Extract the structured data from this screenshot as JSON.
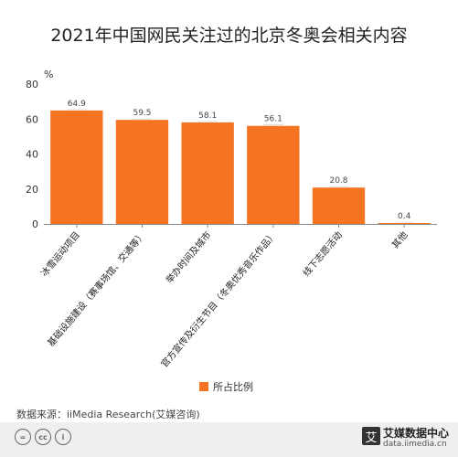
{
  "chart_data": {
    "type": "bar",
    "title": "2021年中国网民关注过的北京冬奥会相关内容",
    "unit": "%",
    "categories": [
      "冰雪运动项目",
      "基础设施建设（赛事场馆、交通等）",
      "举办时间及城市",
      "官方宣传及衍生节目（冬奥优秀音乐作品）",
      "线下志愿活动",
      "其他"
    ],
    "series": [
      {
        "name": "所占比例",
        "values": [
          64.9,
          59.5,
          58.1,
          56.1,
          20.8,
          0.4
        ]
      }
    ],
    "value_labels": [
      "64.9",
      "59.5",
      "58.1",
      "56.1",
      "20.8",
      "0.4"
    ],
    "ylim": [
      0,
      80
    ],
    "yticks": [
      0,
      20,
      40,
      60,
      80
    ],
    "grid": false,
    "legend_position": "bottom",
    "bar_color": "#f47421"
  },
  "source": "数据来源：iiMedia Research(艾媒咨询)",
  "footer": {
    "license_icons": [
      "=",
      "cc",
      "i"
    ],
    "logo_mark": "艾",
    "brand": "艾媒数据中心",
    "url": "data.iimedia.cn"
  }
}
